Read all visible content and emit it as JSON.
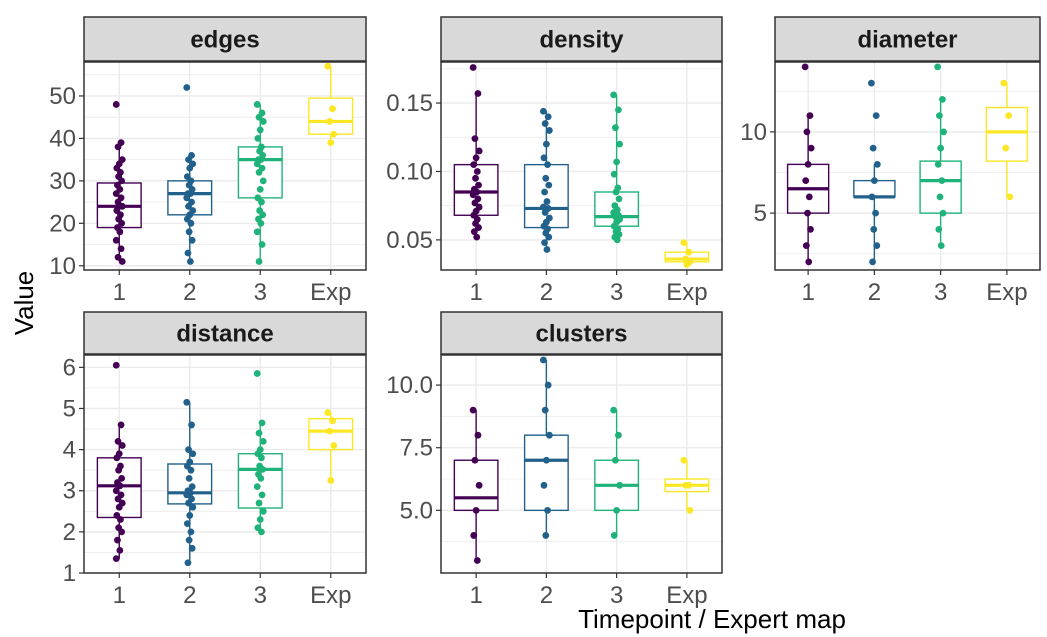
{
  "figure": {
    "xlabel": "Timepoint / Expert map",
    "ylabel": "Value"
  },
  "colors": {
    "1": "#440154",
    "2": "#21618C",
    "3": "#1FB37A",
    "Exp": "#FDE725",
    "strip_fill": "#D9D9D9",
    "grid": "#EBEBEB"
  },
  "chart_data": [
    {
      "type": "box",
      "title": "edges",
      "categories": [
        "1",
        "2",
        "3",
        "Exp"
      ],
      "ylim": [
        9,
        58
      ],
      "yticks": [
        10,
        20,
        30,
        40,
        50
      ],
      "ytick_labels": [
        "10",
        "20",
        "30",
        "40",
        "50"
      ],
      "boxes": [
        {
          "category": "1",
          "min": 11,
          "q1": 19,
          "median": 24,
          "q3": 29.5,
          "max": 39,
          "points": [
            48,
            39,
            38,
            35,
            34,
            33,
            32,
            31,
            30,
            29,
            28,
            27,
            26,
            25,
            24,
            24,
            23,
            22,
            21,
            20,
            19,
            18,
            16,
            14,
            12,
            11
          ]
        },
        {
          "category": "2",
          "min": 11,
          "q1": 22,
          "median": 27,
          "q3": 30,
          "max": 36,
          "points": [
            52,
            36,
            35,
            34,
            33,
            31,
            30,
            29,
            28,
            27,
            27,
            26,
            25,
            24,
            23,
            22,
            21,
            20,
            18,
            16,
            13,
            11
          ]
        },
        {
          "category": "3",
          "min": 11,
          "q1": 26,
          "median": 35,
          "q3": 38,
          "max": 48,
          "points": [
            48,
            46,
            45,
            44,
            42,
            40,
            38,
            37,
            36,
            35,
            35,
            34,
            33,
            32,
            30,
            28,
            26,
            25,
            23,
            22,
            21,
            20,
            18,
            15,
            11
          ]
        },
        {
          "category": "Exp",
          "min": 39,
          "q1": 41,
          "median": 44,
          "q3": 49.5,
          "max": 57,
          "points": [
            57,
            47,
            44,
            41,
            39
          ]
        }
      ]
    },
    {
      "type": "box",
      "title": "density",
      "categories": [
        "1",
        "2",
        "3",
        "Exp"
      ],
      "ylim": [
        0.028,
        0.18
      ],
      "yticks": [
        0.05,
        0.1,
        0.15
      ],
      "ytick_labels": [
        "0.05",
        "0.10",
        "0.15"
      ],
      "boxes": [
        {
          "category": "1",
          "min": 0.052,
          "q1": 0.068,
          "median": 0.085,
          "q3": 0.105,
          "max": 0.157,
          "points": [
            0.176,
            0.157,
            0.124,
            0.115,
            0.11,
            0.105,
            0.1,
            0.095,
            0.09,
            0.087,
            0.085,
            0.083,
            0.08,
            0.077,
            0.074,
            0.071,
            0.068,
            0.065,
            0.062,
            0.059,
            0.056,
            0.052
          ]
        },
        {
          "category": "2",
          "min": 0.043,
          "q1": 0.059,
          "median": 0.073,
          "q3": 0.105,
          "max": 0.144,
          "points": [
            0.144,
            0.14,
            0.135,
            0.13,
            0.12,
            0.11,
            0.105,
            0.095,
            0.09,
            0.085,
            0.078,
            0.074,
            0.073,
            0.07,
            0.066,
            0.063,
            0.06,
            0.058,
            0.055,
            0.052,
            0.048,
            0.043
          ]
        },
        {
          "category": "3",
          "min": 0.05,
          "q1": 0.06,
          "median": 0.067,
          "q3": 0.085,
          "max": 0.156,
          "points": [
            0.156,
            0.145,
            0.132,
            0.12,
            0.107,
            0.098,
            0.088,
            0.085,
            0.08,
            0.075,
            0.072,
            0.07,
            0.068,
            0.067,
            0.065,
            0.063,
            0.06,
            0.058,
            0.056,
            0.054,
            0.052,
            0.05
          ]
        },
        {
          "category": "Exp",
          "min": 0.032,
          "q1": 0.034,
          "median": 0.036,
          "q3": 0.041,
          "max": 0.048,
          "points": [
            0.048,
            0.041,
            0.036,
            0.034,
            0.032
          ]
        }
      ]
    },
    {
      "type": "box",
      "title": "diameter",
      "categories": [
        "1",
        "2",
        "3",
        "Exp"
      ],
      "ylim": [
        1.5,
        14.3
      ],
      "yticks": [
        5,
        10
      ],
      "ytick_labels": [
        "5",
        "10"
      ],
      "boxes": [
        {
          "category": "1",
          "min": 2,
          "q1": 5,
          "median": 6.5,
          "q3": 8,
          "max": 11,
          "points": [
            14,
            11,
            10,
            9,
            8,
            7,
            6,
            5,
            4,
            3,
            2
          ]
        },
        {
          "category": "2",
          "min": 2,
          "q1": 6,
          "median": 6,
          "q3": 7,
          "max": 8,
          "points": [
            13,
            11,
            9,
            8,
            7,
            6,
            5,
            4,
            3,
            2
          ]
        },
        {
          "category": "3",
          "min": 3,
          "q1": 5,
          "median": 7,
          "q3": 8.2,
          "max": 12,
          "points": [
            14,
            12,
            11,
            10,
            9,
            8,
            7,
            6,
            5,
            4,
            3
          ]
        },
        {
          "category": "Exp",
          "min": 6,
          "q1": 8.2,
          "median": 10,
          "q3": 11.5,
          "max": 13,
          "points": [
            13,
            11,
            9,
            6
          ]
        }
      ]
    },
    {
      "type": "box",
      "title": "distance",
      "categories": [
        "1",
        "2",
        "3",
        "Exp"
      ],
      "ylim": [
        1,
        6.3
      ],
      "yticks": [
        1,
        2,
        3,
        4,
        5,
        6
      ],
      "ytick_labels": [
        "1",
        "2",
        "3",
        "4",
        "5",
        "6"
      ],
      "boxes": [
        {
          "category": "1",
          "min": 1.35,
          "q1": 2.35,
          "median": 3.12,
          "q3": 3.8,
          "max": 4.6,
          "points": [
            6.05,
            4.6,
            4.2,
            4.1,
            3.9,
            3.8,
            3.6,
            3.5,
            3.3,
            3.2,
            3.12,
            3.0,
            2.9,
            2.8,
            2.7,
            2.6,
            2.4,
            2.3,
            2.1,
            2.0,
            1.8,
            1.55,
            1.35
          ]
        },
        {
          "category": "2",
          "min": 1.25,
          "q1": 2.68,
          "median": 2.95,
          "q3": 3.65,
          "max": 5.15,
          "points": [
            5.15,
            4.6,
            4.0,
            3.9,
            3.7,
            3.6,
            3.5,
            3.3,
            3.1,
            3.0,
            2.95,
            2.9,
            2.8,
            2.7,
            2.6,
            2.4,
            2.2,
            2.0,
            1.8,
            1.6,
            1.25
          ]
        },
        {
          "category": "3",
          "min": 2.0,
          "q1": 2.58,
          "median": 3.52,
          "q3": 3.9,
          "max": 4.65,
          "points": [
            5.85,
            4.65,
            4.4,
            4.2,
            4.0,
            3.9,
            3.8,
            3.6,
            3.52,
            3.4,
            3.3,
            3.1,
            2.9,
            2.7,
            2.5,
            2.3,
            2.1,
            2.0
          ]
        },
        {
          "category": "Exp",
          "min": 3.25,
          "q1": 4.0,
          "median": 4.45,
          "q3": 4.75,
          "max": 4.9,
          "points": [
            4.9,
            4.7,
            4.45,
            4.1,
            3.25
          ]
        }
      ]
    },
    {
      "type": "box",
      "title": "clusters",
      "categories": [
        "1",
        "2",
        "3",
        "Exp"
      ],
      "ylim": [
        2.5,
        11.2
      ],
      "yticks": [
        5.0,
        7.5,
        10.0
      ],
      "ytick_labels": [
        "5.0",
        "7.5",
        "10.0"
      ],
      "boxes": [
        {
          "category": "1",
          "min": 3,
          "q1": 5,
          "median": 5.5,
          "q3": 7,
          "max": 9,
          "points": [
            9,
            8,
            7,
            6,
            5,
            4,
            3
          ]
        },
        {
          "category": "2",
          "min": 4,
          "q1": 5,
          "median": 7,
          "q3": 8,
          "max": 11,
          "points": [
            11,
            10,
            9,
            8,
            7,
            6,
            5,
            4
          ]
        },
        {
          "category": "3",
          "min": 4,
          "q1": 5,
          "median": 6,
          "q3": 7,
          "max": 9,
          "points": [
            9,
            8,
            7,
            6,
            5,
            4
          ]
        },
        {
          "category": "Exp",
          "min": 5,
          "q1": 5.75,
          "median": 6,
          "q3": 6.25,
          "max": 7,
          "points": [
            7,
            6,
            6,
            5
          ]
        }
      ]
    }
  ]
}
